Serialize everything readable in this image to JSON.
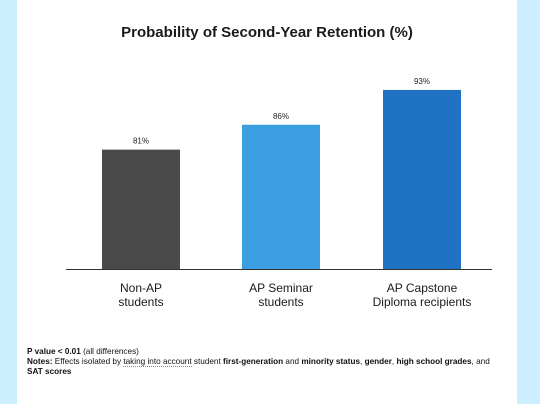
{
  "chart_data": {
    "type": "bar",
    "title": "Probability of Second-Year Retention (%)",
    "categories": [
      "Non-AP\nstudents",
      "AP Seminar\nstudents",
      "AP Capstone\nDiploma recipients"
    ],
    "values": [
      81,
      86,
      93
    ],
    "data_labels": [
      "81%",
      "86%",
      "93%"
    ],
    "colors": [
      "#4a4a4a",
      "#3a9ee0",
      "#1f72c4"
    ],
    "ylim": [
      57,
      95
    ],
    "grid": false,
    "legend": "none"
  },
  "notes": {
    "pvalue_bold": "P value < 0.01",
    "pvalue_rest": " (all differences)",
    "notes_label": "Notes:",
    "t1": " Effects isolated by ",
    "t2": "taking into account",
    "t3": " student ",
    "b1": "first-generation",
    "t4": " and ",
    "b2": "minority status",
    "t5": ", ",
    "b3": "gender",
    "t6": ", ",
    "b4": "high school grades",
    "t7": ", and ",
    "b5": "SAT scores"
  }
}
